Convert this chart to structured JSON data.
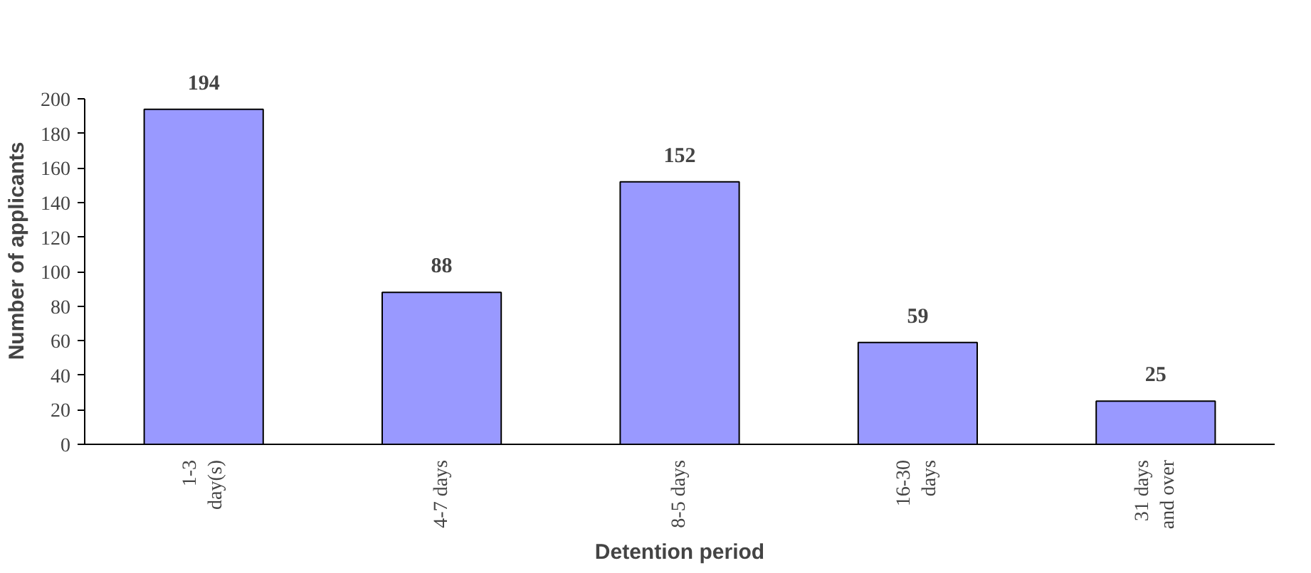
{
  "chart_data": {
    "type": "bar",
    "xlabel": "Detention period",
    "ylabel": "Number of applicants",
    "categories": [
      "1-3\nday(s)",
      "4-7 days",
      "8-5 days",
      "16-30\ndays",
      "31 days\nand over"
    ],
    "values": [
      194,
      88,
      152,
      59,
      25
    ],
    "color": "#9999ff",
    "ylim": [
      0,
      200
    ],
    "yticks": [
      0,
      20,
      40,
      60,
      80,
      100,
      120,
      140,
      160,
      180,
      200
    ],
    "data_labels": true,
    "grid": false,
    "legend": false
  }
}
